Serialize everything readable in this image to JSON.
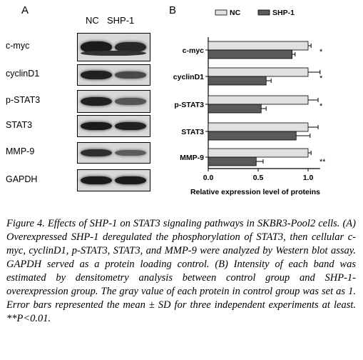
{
  "panel_a": {
    "letter": "A",
    "lanes": [
      "NC",
      "SHP-1"
    ],
    "rows": [
      {
        "label": "c-myc",
        "nc": 0.95,
        "shp1": 0.85
      },
      {
        "label": "cyclinD1",
        "nc": 0.9,
        "shp1": 0.6
      },
      {
        "label": "p-STAT3",
        "nc": 0.9,
        "shp1": 0.5
      },
      {
        "label": "STAT3",
        "nc": 0.95,
        "shp1": 0.9
      },
      {
        "label": "MMP-9",
        "nc": 0.8,
        "shp1": 0.45
      },
      {
        "label": "GAPDH",
        "nc": 0.95,
        "shp1": 0.95
      }
    ]
  },
  "panel_b": {
    "letter": "B"
  },
  "chart_data": {
    "type": "bar",
    "orientation": "horizontal",
    "categories": [
      "c-myc",
      "cyclinD1",
      "p-STAT3",
      "STAT3",
      "MMP-9"
    ],
    "series": [
      {
        "name": "NC",
        "color": "#e0e0e0",
        "values": [
          1.0,
          1.0,
          1.0,
          1.0,
          1.0
        ],
        "errors": [
          0.03,
          0.12,
          0.1,
          0.1,
          0.03
        ]
      },
      {
        "name": "SHP-1",
        "color": "#5a5a5a",
        "values": [
          0.84,
          0.58,
          0.53,
          0.88,
          0.48
        ],
        "errors": [
          0.03,
          0.05,
          0.05,
          0.14,
          0.07
        ]
      }
    ],
    "significance": [
      "*",
      "*",
      "*",
      "",
      "**"
    ],
    "xlabel": "Relative expression level of proteins",
    "xticks": [
      "0.0",
      "0.5",
      "1.0"
    ],
    "xlim": [
      0,
      1.5
    ],
    "legend_position": "top"
  },
  "caption": {
    "label": "Figure 4.",
    "text": " Effects of SHP-1 on STAT3 signaling pathways in SKBR3-Pool2 cells. (A) Overexpressed SHP-1 deregulated the phosphorylation of STAT3, then cellular c-myc, cyclinD1, p-STAT3, STAT3, and MMP-9 were analyzed by Western blot assay. GAPDH served as a protein loading control. (B) Intensity of each band was estimated by densitometry analysis between control group and SHP-1-overexpression group. The gray value of each protein in control group was set as 1. Error bars represented the mean ± SD for three independent experiments at least. **P<0.01."
  }
}
